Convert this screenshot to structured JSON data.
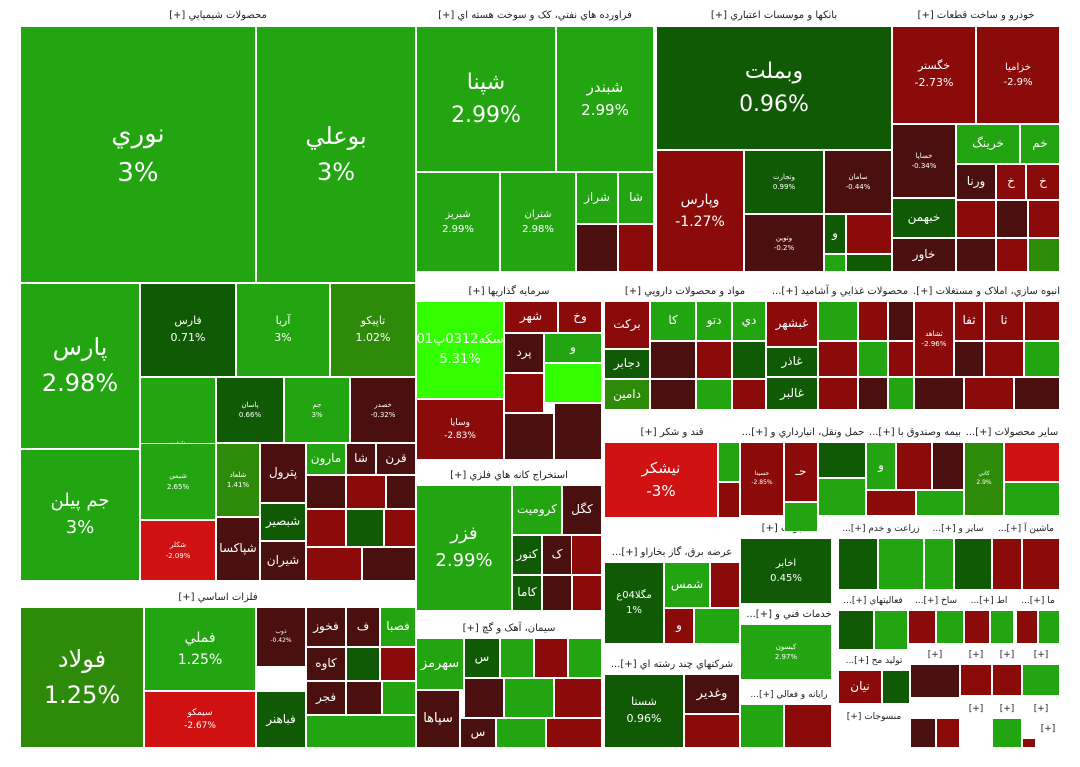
{
  "chart_data": {
    "type": "treemap",
    "title": "",
    "colors": {
      "strong_up": "#33ff00",
      "up": "#22a511",
      "mild_up": "#2e8b0a",
      "dark_up": "#105a05",
      "neutral": "#4a0f0f",
      "down": "#8b0a0a",
      "strong_down": "#d01212"
    },
    "sectors": [
      {
        "name": "محصولات شيميايي [+]",
        "stocks": [
          {
            "name": "نوري",
            "change": "3%"
          },
          {
            "name": "بوعلي",
            "change": "3%"
          },
          {
            "name": "پارس",
            "change": "2.98%"
          },
          {
            "name": "جم پيلن",
            "change": "3%"
          },
          {
            "name": "فارس",
            "change": "0.71%"
          },
          {
            "name": "آريا",
            "change": "3%"
          },
          {
            "name": "تاپيکو",
            "change": "1.02%"
          },
          {
            "name": "شفن",
            "change": "2.96%"
          },
          {
            "name": "پاسان",
            "change": "0.66%"
          },
          {
            "name": "جم",
            "change": "3%"
          },
          {
            "name": "خصدر",
            "change": "-0.32%"
          },
          {
            "name": "شيمي",
            "change": "2.65%"
          },
          {
            "name": "شکلر",
            "change": "-2.09%"
          },
          {
            "name": "شلعاد",
            "change": "1.41%"
          },
          {
            "name": "مارون"
          },
          {
            "name": "شا"
          },
          {
            "name": "قرن"
          },
          {
            "name": "پترول"
          },
          {
            "name": "شبصير"
          },
          {
            "name": "شپاکسا"
          },
          {
            "name": "شيران"
          }
        ]
      },
      {
        "name": "فراورده هاي نفتي، کک و سوخت هسته اي [+]",
        "stocks": [
          {
            "name": "شپنا",
            "change": "2.99%"
          },
          {
            "name": "شبندر",
            "change": "2.99%"
          },
          {
            "name": "شبريز",
            "change": "2.99%"
          },
          {
            "name": "شتران",
            "change": "2.98%"
          },
          {
            "name": "شراز"
          },
          {
            "name": "شا"
          }
        ]
      },
      {
        "name": "بانکها و موسسات اعتباري [+]",
        "stocks": [
          {
            "name": "وبملت",
            "change": "0.96%"
          },
          {
            "name": "وپارس",
            "change": "-1.27%"
          },
          {
            "name": "وتجارت",
            "change": "0.99%"
          },
          {
            "name": "سامان",
            "change": "-0.44%"
          },
          {
            "name": "وتوين",
            "change": "-0.2%"
          },
          {
            "name": "و"
          }
        ]
      },
      {
        "name": "خودرو و ساخت قطعات [+]",
        "stocks": [
          {
            "name": "خگستر",
            "change": "-2.73%"
          },
          {
            "name": "خزاميا",
            "change": "-2.9%"
          },
          {
            "name": "خساپا",
            "change": "-0.34%"
          },
          {
            "name": "خرينگ"
          },
          {
            "name": "خم"
          },
          {
            "name": "ورنا"
          },
          {
            "name": "خ"
          },
          {
            "name": "خ"
          },
          {
            "name": "خبهمن"
          },
          {
            "name": "خاور"
          }
        ]
      },
      {
        "name": "سرمايه گذاريها [+]",
        "stocks": [
          {
            "name": "سکه0312پ01",
            "change": "5.31%"
          },
          {
            "name": "وسايا",
            "change": "-2.83%"
          },
          {
            "name": "شهر"
          },
          {
            "name": "وخ"
          },
          {
            "name": "پرد"
          },
          {
            "name": "و"
          }
        ]
      },
      {
        "name": "مواد و محصولات دارويي [+]",
        "stocks": [
          {
            "name": "برکت"
          },
          {
            "name": "کا"
          },
          {
            "name": "دتو"
          },
          {
            "name": "دي"
          },
          {
            "name": "دجابر"
          },
          {
            "name": "دامين"
          }
        ]
      },
      {
        "name": "محصولات غذايي و آشاميد [+]...",
        "stocks": [
          {
            "name": "غبشهر"
          },
          {
            "name": "غاذر"
          },
          {
            "name": "غالبر"
          }
        ]
      },
      {
        "name": "انبوه سازي، املاک و مستغلات [+]...",
        "stocks": [
          {
            "name": "ثشاهد",
            "change": "-2.96%"
          },
          {
            "name": "ثفا"
          },
          {
            "name": "ثا"
          }
        ]
      },
      {
        "name": "استخراج کانه هاي فلزي [+]",
        "stocks": [
          {
            "name": "فزر",
            "change": "2.99%"
          },
          {
            "name": "کروميت"
          },
          {
            "name": "کگل"
          },
          {
            "name": "کنور"
          },
          {
            "name": "ک"
          },
          {
            "name": "کاما"
          }
        ]
      },
      {
        "name": "قند و شکر [+]",
        "stocks": [
          {
            "name": "نيشکر",
            "change": "-3%"
          }
        ]
      },
      {
        "name": "حمل ونقل، انبارداري و [+]...",
        "stocks": [
          {
            "name": "حسينا",
            "change": "-2.85%"
          },
          {
            "name": "حـ"
          }
        ]
      },
      {
        "name": "بيمه وصندوق با [+]...",
        "stocks": [
          {
            "name": "و"
          }
        ]
      },
      {
        "name": "ساير محصولات [+]...",
        "stocks": [
          {
            "name": "کاني",
            "change": "2.9%"
          }
        ]
      },
      {
        "name": "فلزات اساسي [+]",
        "stocks": [
          {
            "name": "فولاد",
            "change": "1.25%"
          },
          {
            "name": "فملي",
            "change": "1.25%"
          },
          {
            "name": "سيمکو",
            "change": "-2.67%"
          },
          {
            "name": "ذوب",
            "change": "-0.42%"
          },
          {
            "name": "فخوز"
          },
          {
            "name": "ف"
          },
          {
            "name": "فصبا"
          },
          {
            "name": "کاوه"
          },
          {
            "name": "فجر"
          },
          {
            "name": "فباهنر"
          }
        ]
      },
      {
        "name": "سيمان، آهک و گچ [+]",
        "stocks": [
          {
            "name": "سهرمز"
          },
          {
            "name": "س"
          },
          {
            "name": "سپاها"
          },
          {
            "name": "س"
          }
        ]
      },
      {
        "name": "عرضه برق، گاز بخاراو [+]...",
        "stocks": [
          {
            "name": "شمس"
          },
          {
            "name": "مگلا04ع",
            "change": "1%"
          },
          {
            "name": "و"
          }
        ]
      },
      {
        "name": "مخابرات [+]",
        "stocks": [
          {
            "name": "اخابر",
            "change": "0.45%"
          }
        ]
      },
      {
        "name": "خدمات فني و [+]...",
        "stocks": [
          {
            "name": "کيسون",
            "change": "2.97%"
          }
        ]
      },
      {
        "name": "شرکتهاي چند رشته اي [+]...",
        "stocks": [
          {
            "name": "شستا",
            "change": "0.96%"
          },
          {
            "name": "وغدير"
          }
        ]
      },
      {
        "name": "رايانه و فعالي [+]...",
        "stocks": []
      },
      {
        "name": "زراعت و خدم [+]...",
        "stocks": []
      },
      {
        "name": "ساير و [+]...",
        "stocks": []
      },
      {
        "name": "ماشين آ [+]...",
        "stocks": []
      },
      {
        "name": "فعاليتهاي [+]...",
        "stocks": []
      },
      {
        "name": "ساخ [+]...",
        "stocks": []
      },
      {
        "name": "اط [+]...",
        "stocks": []
      },
      {
        "name": "ما [+]...",
        "stocks": []
      },
      {
        "name": "توليد مح [+]...",
        "stocks": [
          {
            "name": "نيان"
          }
        ]
      },
      {
        "name": "منسوجات [+]",
        "stocks": []
      },
      {
        "name": "[+]",
        "stocks": []
      },
      {
        "name": "[+]",
        "stocks": []
      },
      {
        "name": "[+]",
        "stocks": []
      },
      {
        "name": "[+]",
        "stocks": []
      },
      {
        "name": "[+]",
        "stocks": []
      },
      {
        "name": "[+]",
        "stocks": []
      },
      {
        "name": "[+]",
        "stocks": []
      },
      {
        "name": "[+]",
        "stocks": []
      }
    ]
  }
}
